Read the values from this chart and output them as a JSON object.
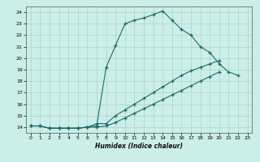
{
  "xlabel": "Humidex (Indice chaleur)",
  "bg_color": "#cceee8",
  "line_color": "#1a6b6b",
  "grid_color": "#aad4ce",
  "xlim": [
    -0.5,
    23.5
  ],
  "ylim": [
    13.5,
    24.5
  ],
  "xticks": [
    0,
    1,
    2,
    3,
    4,
    5,
    6,
    7,
    8,
    9,
    10,
    11,
    12,
    13,
    14,
    15,
    16,
    17,
    18,
    19,
    20,
    21,
    22,
    23
  ],
  "yticks": [
    14,
    15,
    16,
    17,
    18,
    19,
    20,
    21,
    22,
    23,
    24
  ],
  "line1_x": [
    0,
    1,
    2,
    3,
    4,
    5,
    6,
    7,
    8,
    9,
    10,
    11,
    12,
    13,
    14,
    15,
    16,
    17,
    18,
    19,
    20,
    21,
    22
  ],
  "line1_y": [
    14.1,
    14.1,
    13.9,
    13.9,
    13.9,
    13.9,
    14.0,
    14.1,
    19.2,
    21.1,
    23.0,
    23.3,
    23.5,
    23.8,
    24.1,
    23.3,
    22.5,
    22.0,
    21.0,
    20.5,
    19.5,
    18.8,
    18.5
  ],
  "line2_x": [
    0,
    1,
    2,
    3,
    4,
    5,
    6,
    7,
    8,
    9,
    10,
    11,
    12,
    13,
    14,
    15,
    16,
    17,
    18,
    19,
    20
  ],
  "line2_y": [
    14.1,
    14.1,
    13.9,
    13.9,
    13.9,
    13.9,
    14.0,
    14.3,
    14.3,
    15.0,
    15.5,
    16.0,
    16.5,
    17.0,
    17.5,
    18.0,
    18.5,
    18.9,
    19.2,
    19.5,
    19.8
  ],
  "line3_x": [
    0,
    1,
    2,
    3,
    4,
    5,
    6,
    7,
    8,
    9,
    10,
    11,
    12,
    13,
    14,
    15,
    16,
    17,
    18,
    19,
    20
  ],
  "line3_y": [
    14.1,
    14.1,
    13.9,
    13.9,
    13.9,
    13.9,
    14.0,
    14.0,
    14.1,
    14.4,
    14.8,
    15.2,
    15.6,
    16.0,
    16.4,
    16.8,
    17.2,
    17.6,
    18.0,
    18.4,
    18.8
  ]
}
